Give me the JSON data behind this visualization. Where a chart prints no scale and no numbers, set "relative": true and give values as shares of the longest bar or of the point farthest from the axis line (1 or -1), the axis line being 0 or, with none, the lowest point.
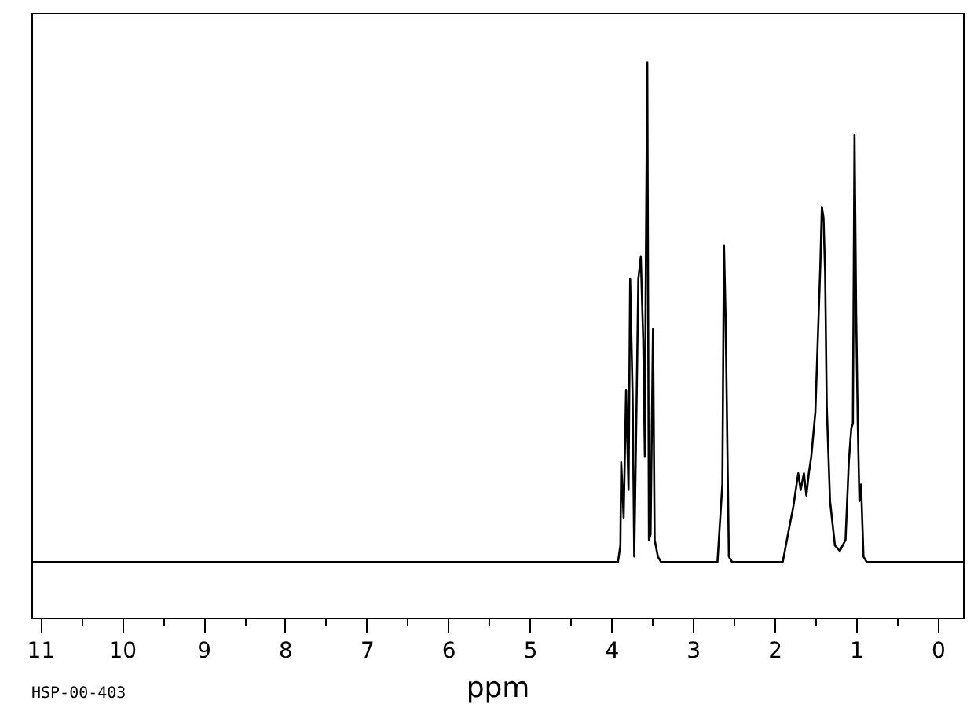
{
  "chart_data": {
    "type": "line",
    "relative": true,
    "xlabel": "ppm",
    "annotations": [
      "HSP-00-403"
    ],
    "tick_labels": "x",
    "xlim": [
      11.11,
      -0.31
    ],
    "xticks": [
      11,
      {
        "value": 10.5,
        "label": null
      },
      10,
      {
        "value": 9.5,
        "label": null
      },
      9,
      {
        "value": 8.5,
        "label": null
      },
      8,
      {
        "value": 7.5,
        "label": null
      },
      7,
      {
        "value": 6.5,
        "label": null
      },
      6,
      {
        "value": 5.5,
        "label": null
      },
      5,
      {
        "value": 4.5,
        "label": null
      },
      4,
      {
        "value": 3.5,
        "label": null
      },
      3,
      {
        "value": 2.5,
        "label": null
      },
      2,
      {
        "value": 1.5,
        "label": null
      },
      1,
      {
        "value": 0.5,
        "label": null
      },
      0
    ],
    "x": [
      11.11,
      9.0,
      7.0,
      5.0,
      3.92,
      3.89,
      3.88,
      3.85,
      3.82,
      3.79,
      3.77,
      3.74,
      3.72,
      3.69,
      3.67,
      3.64,
      3.61,
      3.59,
      3.58,
      3.56,
      3.54,
      3.52,
      3.49,
      3.47,
      3.43,
      3.39,
      2.7,
      2.64,
      2.62,
      2.6,
      2.56,
      2.52,
      1.9,
      1.81,
      1.77,
      1.71,
      1.68,
      1.64,
      1.61,
      1.58,
      1.55,
      1.5,
      1.47,
      1.44,
      1.42,
      1.4,
      1.38,
      1.36,
      1.32,
      1.26,
      1.2,
      1.13,
      1.09,
      1.06,
      1.04,
      1.02,
      1.0,
      0.98,
      0.96,
      0.94,
      0.91,
      0.87,
      -0.31
    ],
    "series": [
      {
        "color": "#000000",
        "values": [
          0.1,
          0.1,
          0.1,
          0.1,
          0.1,
          0.13,
          0.28,
          0.18,
          0.41,
          0.23,
          0.61,
          0.4,
          0.11,
          0.4,
          0.61,
          0.65,
          0.5,
          0.29,
          0.58,
          1.0,
          0.14,
          0.15,
          0.52,
          0.14,
          0.11,
          0.1,
          0.1,
          0.24,
          0.67,
          0.54,
          0.11,
          0.1,
          0.1,
          0.17,
          0.2,
          0.26,
          0.23,
          0.26,
          0.22,
          0.26,
          0.29,
          0.37,
          0.5,
          0.63,
          0.74,
          0.72,
          0.62,
          0.38,
          0.21,
          0.13,
          0.12,
          0.14,
          0.28,
          0.34,
          0.35,
          0.87,
          0.55,
          0.35,
          0.21,
          0.24,
          0.11,
          0.1,
          0.1
        ]
      }
    ]
  }
}
